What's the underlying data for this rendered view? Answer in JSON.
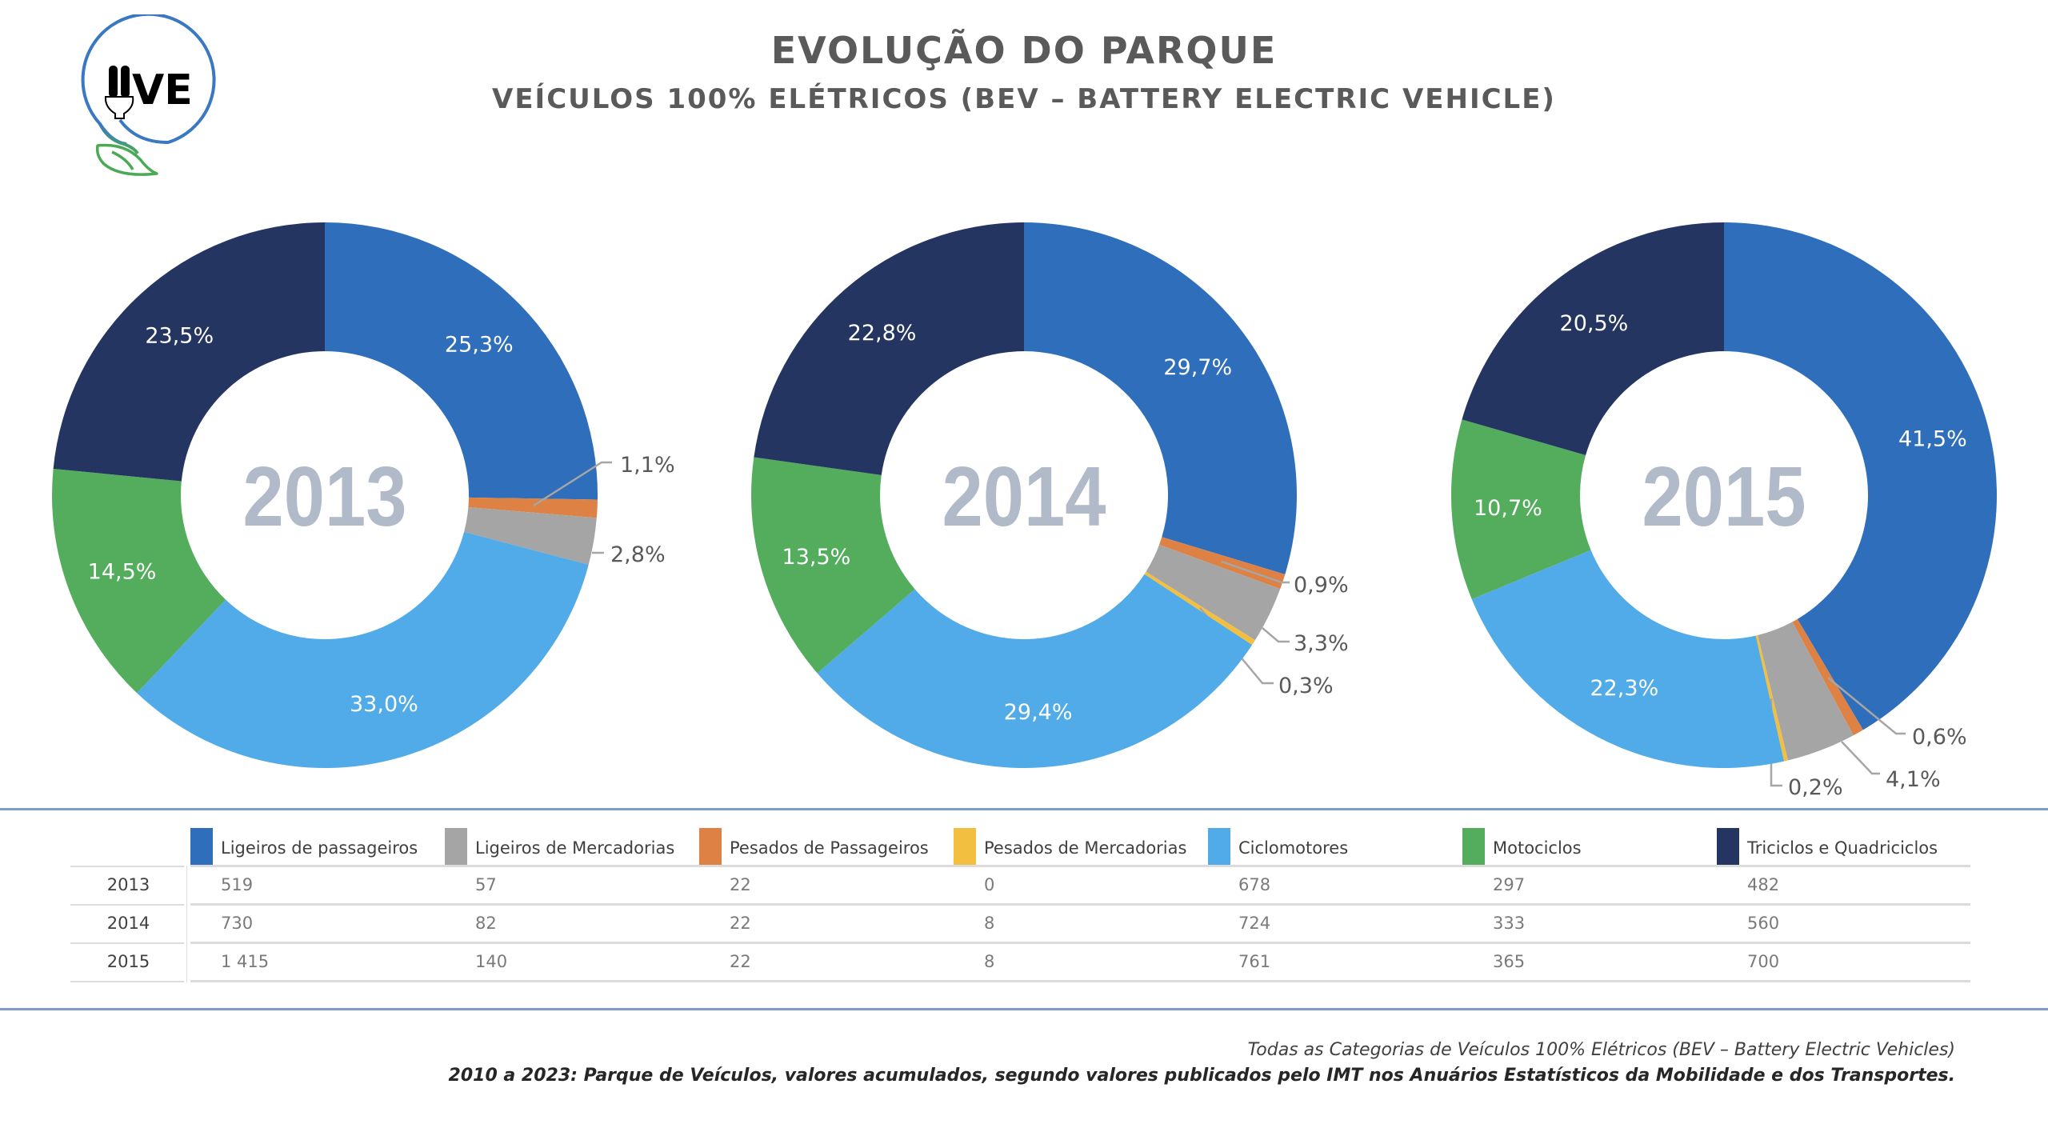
{
  "header": {
    "title": "EVOLUÇÃO DO PARQUE",
    "subtitle": "VEÍCULOS 100% ELÉTRICOS (BEV – BATTERY ELECTRIC VEHICLE)",
    "logo_text": "IIVE"
  },
  "colors": {
    "Ligeiros de passageiros": "#2f6ebb",
    "Ligeiros de Mercadorias": "#a5a5a5",
    "Pesados de Passageiros": "#dd8244",
    "Pesados de Mercadorias": "#f2bf40",
    "Ciclomotores": "#50abe8",
    "Motociclos": "#53ad5d",
    "Triciclos e Quadriciclos": "#253561",
    "year_label": "#b1bac9",
    "title": "#5a5a5a",
    "divider": "#7f9ccc"
  },
  "chart_data": [
    {
      "type": "pie",
      "variant": "donut",
      "title": "2013",
      "categories": [
        "Ligeiros de passageiros",
        "Pesados de Passageiros",
        "Ligeiros de Mercadorias",
        "Pesados de Mercadorias",
        "Ciclomotores",
        "Motociclos",
        "Triciclos e Quadriciclos"
      ],
      "values": [
        519,
        22,
        57,
        0,
        678,
        297,
        482
      ],
      "percent_labels": [
        "25,3%",
        "1,1%",
        "2,8%",
        "",
        "33,0%",
        "14,5%",
        "23,5%"
      ]
    },
    {
      "type": "pie",
      "variant": "donut",
      "title": "2014",
      "categories": [
        "Ligeiros de passageiros",
        "Pesados de Passageiros",
        "Ligeiros de Mercadorias",
        "Pesados de Mercadorias",
        "Ciclomotores",
        "Motociclos",
        "Triciclos e Quadriciclos"
      ],
      "values": [
        730,
        22,
        82,
        8,
        724,
        333,
        560
      ],
      "percent_labels": [
        "29,7%",
        "0,9%",
        "3,3%",
        "0,3%",
        "29,4%",
        "13,5%",
        "22,8%"
      ]
    },
    {
      "type": "pie",
      "variant": "donut",
      "title": "2015",
      "categories": [
        "Ligeiros de passageiros",
        "Pesados de Passageiros",
        "Ligeiros de Mercadorias",
        "Pesados de Mercadorias",
        "Ciclomotores",
        "Motociclos",
        "Triciclos e Quadriciclos"
      ],
      "values": [
        1415,
        22,
        140,
        8,
        761,
        365,
        700
      ],
      "percent_labels": [
        "41,5%",
        "0,6%",
        "4,1%",
        "0,2%",
        "22,3%",
        "10,7%",
        "20,5%"
      ]
    },
    {
      "type": "table",
      "columns": [
        "Ligeiros de passageiros",
        "Ligeiros de Mercadorias",
        "Pesados de Passageiros",
        "Pesados de Mercadorias",
        "Ciclomotores",
        "Motociclos",
        "Triciclos e Quadriciclos"
      ],
      "rows": [
        {
          "year": "2013",
          "values": [
            "519",
            "57",
            "22",
            "0",
            "678",
            "297",
            "482"
          ]
        },
        {
          "year": "2014",
          "values": [
            "730",
            "82",
            "22",
            "8",
            "724",
            "333",
            "560"
          ]
        },
        {
          "year": "2015",
          "values": [
            "1 415",
            "140",
            "22",
            "8",
            "761",
            "365",
            "700"
          ]
        }
      ]
    }
  ],
  "footer": {
    "line1": "Todas as Categorias de Veículos 100% Elétricos (BEV – Battery Electric Vehicles)",
    "line2": "2010 a 2023: Parque de Veículos, valores acumulados, segundo valores publicados pelo IMT nos Anuários Estatísticos da Mobilidade e dos Transportes."
  }
}
